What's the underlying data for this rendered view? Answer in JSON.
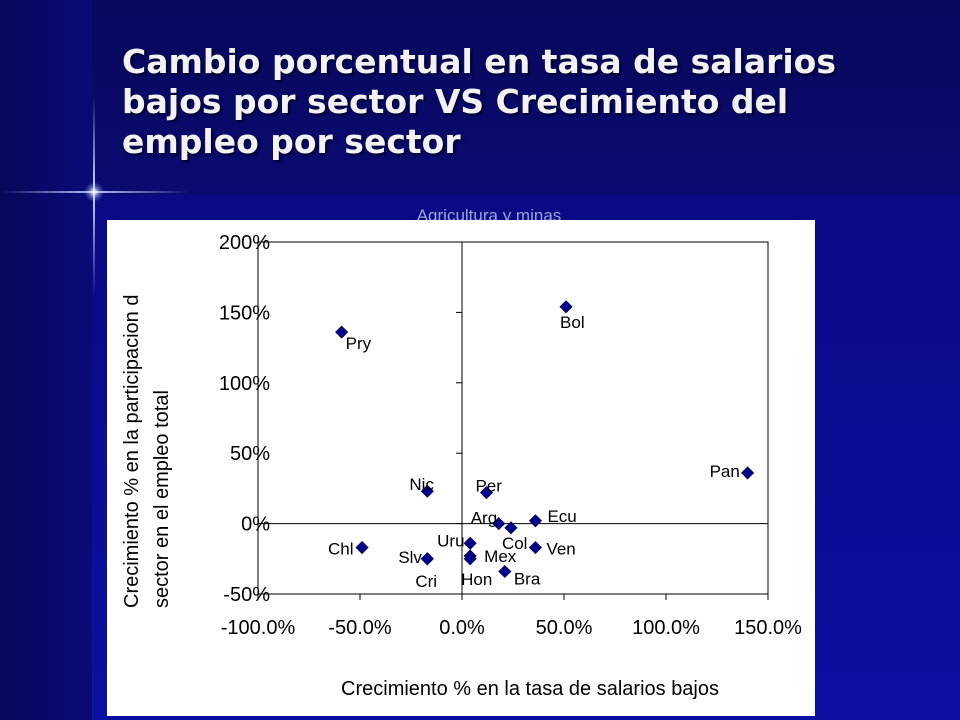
{
  "slide": {
    "title_lines": [
      "Cambio porcentual en tasa de salarios",
      "bajos por sector VS Crecimiento del",
      "empleo por sector"
    ],
    "chart_title_hidden": "Agricultura y minas"
  },
  "colors": {
    "background": "#0a0a86",
    "marker": "#00008b",
    "title": "#f2f2f2"
  },
  "chart_data": {
    "type": "scatter",
    "title": "Agricultura y minas",
    "xlabel": "Crecimiento % en la tasa de salarios bajos",
    "ylabel_lines": [
      "Crecimiento % en la participacion d",
      "sector en el empleo total"
    ],
    "xlim": [
      -100,
      150
    ],
    "ylim": [
      -50,
      200
    ],
    "xticks": [
      -100,
      -50,
      0,
      50,
      100,
      150
    ],
    "yticks": [
      -50,
      0,
      50,
      100,
      150,
      200
    ],
    "xtick_labels": [
      "-100.0%",
      "-50.0%",
      "0.0%",
      "50.0%",
      "100.0%",
      "150.0%"
    ],
    "ytick_labels": [
      "-50%",
      "0%",
      "50%",
      "100%",
      "150%",
      "200%"
    ],
    "grid": false,
    "marker": "diamond",
    "points": [
      {
        "label": "Pry",
        "x": -59,
        "y": 136,
        "lx": 4,
        "ly": -10
      },
      {
        "label": "Bol",
        "x": 51,
        "y": 154,
        "lx": -6,
        "ly": -14
      },
      {
        "label": "Pan",
        "x": 140,
        "y": 36,
        "lx": -38,
        "ly": 3
      },
      {
        "label": "Nic",
        "x": -17,
        "y": 23,
        "lx": -18,
        "ly": 8
      },
      {
        "label": "Per",
        "x": 12,
        "y": 22,
        "lx": -11,
        "ly": 8
      },
      {
        "label": "Arg",
        "x": 18,
        "y": 0,
        "lx": -28,
        "ly": 7
      },
      {
        "label": "Col",
        "x": 24,
        "y": -3,
        "lx": -9,
        "ly": -14
      },
      {
        "label": "Ecu",
        "x": 36,
        "y": 2,
        "lx": 12,
        "ly": 6
      },
      {
        "label": "Uru",
        "x": 4,
        "y": -14,
        "lx": -33,
        "ly": 4
      },
      {
        "label": "Ven",
        "x": 36,
        "y": -17,
        "lx": 11,
        "ly": 0
      },
      {
        "label": "Chl",
        "x": -49,
        "y": -17,
        "lx": -34,
        "ly": 0
      },
      {
        "label": "Slv",
        "x": -17,
        "y": -25,
        "lx": -29,
        "ly": 3
      },
      {
        "label": "Cri",
        "x": -17,
        "y": -25,
        "lx": -12,
        "ly": -21
      },
      {
        "label": "Mex",
        "x": 4,
        "y": -23,
        "lx": 14,
        "ly": 1
      },
      {
        "label": "Hon",
        "x": 4,
        "y": -25,
        "lx": -9,
        "ly": -19
      },
      {
        "label": "Bra",
        "x": 21,
        "y": -34,
        "lx": 9,
        "ly": -6
      }
    ]
  }
}
